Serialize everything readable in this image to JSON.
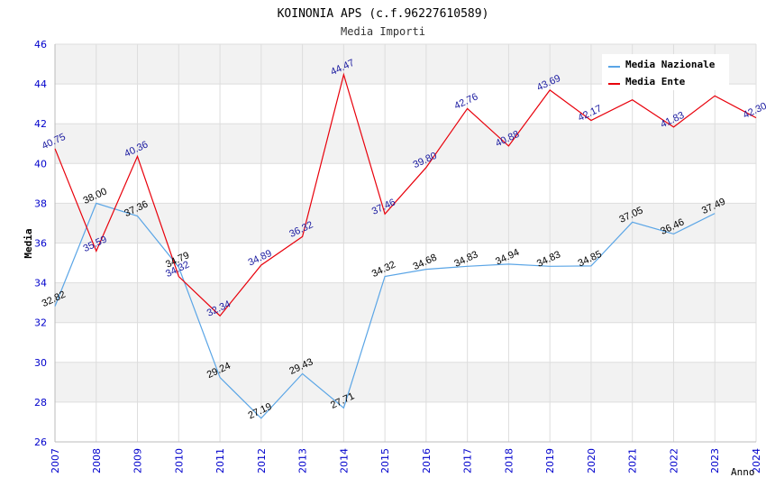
{
  "chart_data": {
    "type": "line",
    "title": "KOINONIA APS (c.f.96227610589)",
    "subtitle": "Media Importi",
    "ylabel": "Media",
    "xlabel": "Anno",
    "ylim": [
      26,
      46
    ],
    "yticks": [
      "26",
      "28",
      "30",
      "32",
      "34",
      "36",
      "38",
      "40",
      "42",
      "44",
      "46"
    ],
    "categories": [
      "2007",
      "2008",
      "2009",
      "2010",
      "2011",
      "2012",
      "2013",
      "2014",
      "2015",
      "2016",
      "2017",
      "2018",
      "2019",
      "2020",
      "2021",
      "2022",
      "2023",
      "2024"
    ],
    "grid": true,
    "legend_position": "top-right",
    "series": [
      {
        "name": "Media Nazionale",
        "color": "#5aa5e6",
        "values": [
          32.82,
          38.0,
          37.36,
          34.79,
          29.24,
          27.19,
          29.43,
          27.71,
          34.32,
          34.68,
          34.83,
          34.94,
          34.83,
          34.85,
          37.05,
          36.46,
          37.49,
          null
        ],
        "labels": [
          "32.82",
          "38.00",
          "37.36",
          "34.79",
          "29.24",
          "27.19",
          "29.43",
          "27.71",
          "34.32",
          "34.68",
          "34.83",
          "34.94",
          "34.83",
          "34.85",
          "37.05",
          "36.46",
          "37.49",
          ""
        ]
      },
      {
        "name": "Media Ente",
        "color": "#e8000b",
        "values": [
          40.75,
          35.59,
          40.36,
          34.32,
          32.34,
          34.89,
          36.32,
          44.47,
          37.46,
          39.8,
          42.76,
          40.88,
          43.69,
          42.17,
          43.2,
          41.83,
          43.4,
          42.3
        ],
        "labels": [
          "40.75",
          "35.59",
          "40.36",
          "34.32",
          "32.34",
          "34.89",
          "36.32",
          "44.47",
          "37.46",
          "39.80",
          "42.76",
          "40.88",
          "43.69",
          "42.17",
          "",
          "41.83",
          "",
          "42.30"
        ]
      }
    ]
  }
}
